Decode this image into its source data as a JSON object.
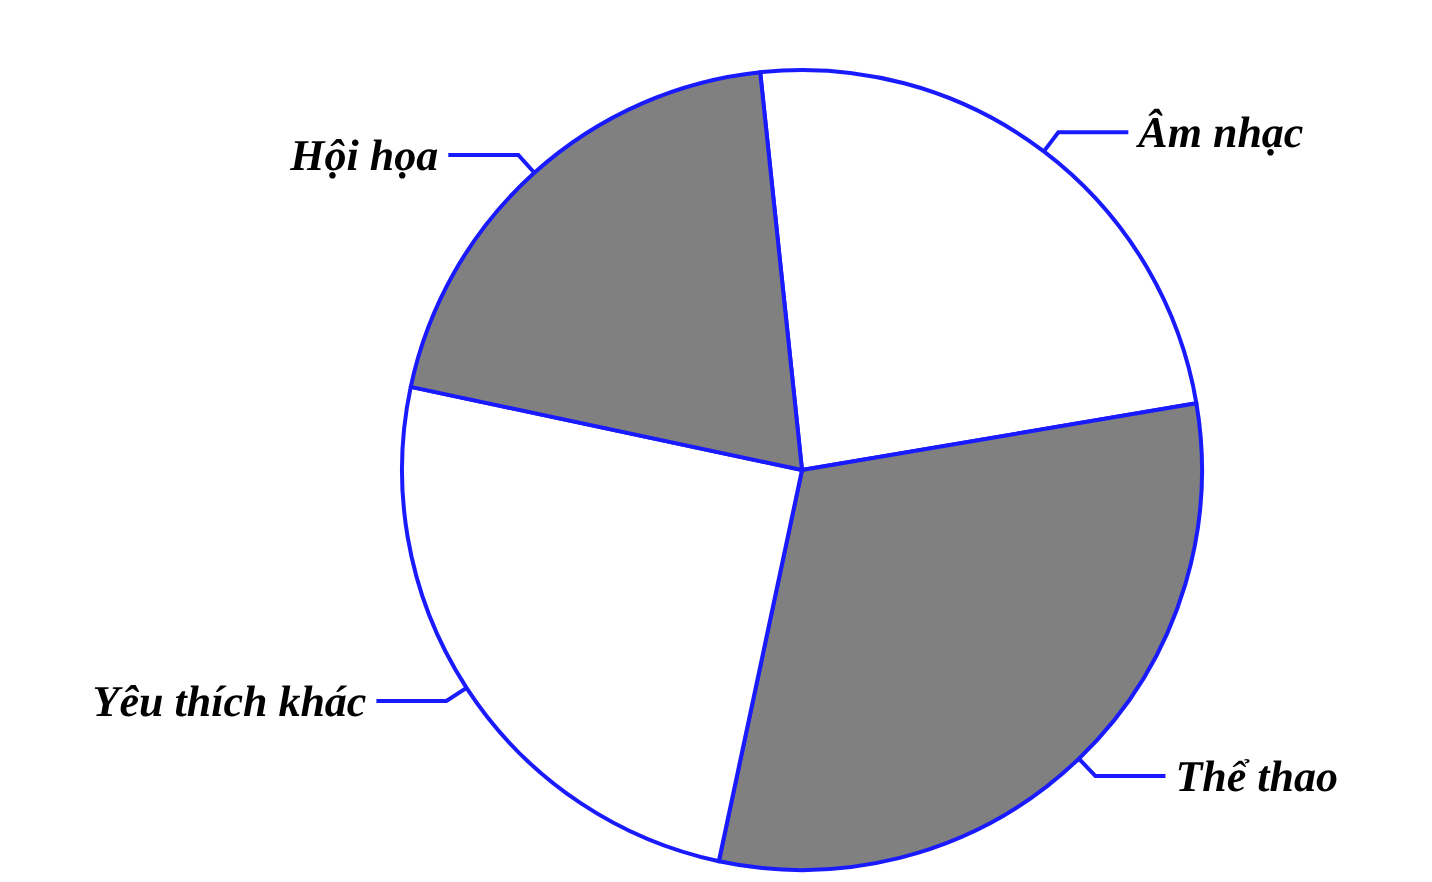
{
  "chart_data": {
    "type": "pie",
    "categories": [
      "Âm nhạc",
      "Thể thao",
      "Yêu thích khác",
      "Hội họa"
    ],
    "values": [
      24,
      31,
      25,
      20
    ],
    "colors": [
      "#ffffff",
      "#808080",
      "#ffffff",
      "#808080"
    ]
  }
}
